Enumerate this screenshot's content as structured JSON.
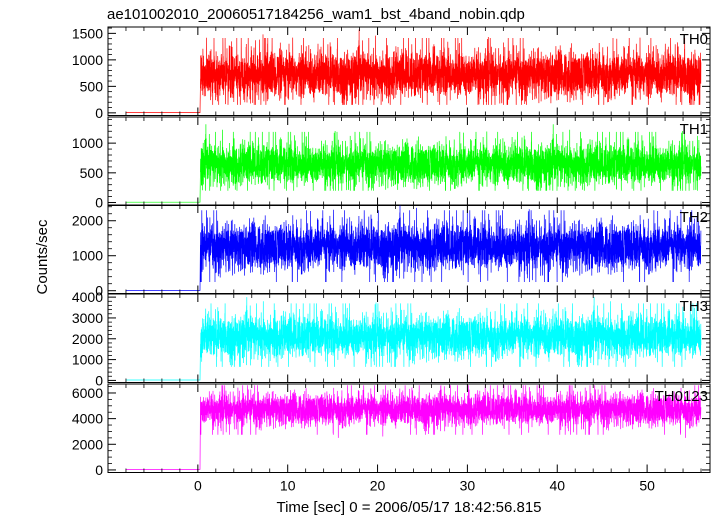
{
  "chart_data": {
    "type": "line",
    "title": "ae101002010_20060517184256_wam1_bst_4band_nobin.qdp",
    "xlabel": "Time [sec] 0 = 2006/05/17 18:42:56.815",
    "ylabel": "Counts/sec",
    "xlim": [
      -10,
      57
    ],
    "x_ticks": [
      0,
      10,
      20,
      30,
      40,
      50
    ],
    "x_minor_step": 2,
    "grid": false,
    "t_start": -8,
    "t_onset": 0.3,
    "t_end": 56,
    "panels": [
      {
        "name": "TH0",
        "color": "#ff0000",
        "ylim": [
          -50,
          1620
        ],
        "y_ticks": [
          0,
          500,
          1000,
          1500
        ],
        "y_minor_step": 100,
        "pre_level": 5,
        "mean": 720,
        "min": 150,
        "max": 1600
      },
      {
        "name": "TH1",
        "color": "#00ff00",
        "ylim": [
          -50,
          1440
        ],
        "y_ticks": [
          0,
          500,
          1000
        ],
        "y_minor_step": 100,
        "pre_level": 5,
        "mean": 640,
        "min": 200,
        "max": 1350
      },
      {
        "name": "TH2",
        "color": "#0000ff",
        "ylim": [
          -80,
          2450
        ],
        "y_ticks": [
          0,
          1000,
          2000
        ],
        "y_minor_step": 200,
        "pre_level": 10,
        "mean": 1250,
        "min": 250,
        "max": 2450
      },
      {
        "name": "TH3",
        "color": "#00ffff",
        "ylim": [
          -100,
          4150
        ],
        "y_ticks": [
          0,
          1000,
          2000,
          3000,
          4000
        ],
        "y_minor_step": 200,
        "pre_level": 20,
        "mean": 2100,
        "min": 650,
        "max": 4000
      },
      {
        "name": "TH0123",
        "color": "#ff00ff",
        "ylim": [
          -200,
          6700
        ],
        "y_ticks": [
          0,
          2000,
          4000,
          6000
        ],
        "y_minor_step": 500,
        "pre_level": 40,
        "mean": 4700,
        "min": 2500,
        "max": 6600
      }
    ]
  }
}
